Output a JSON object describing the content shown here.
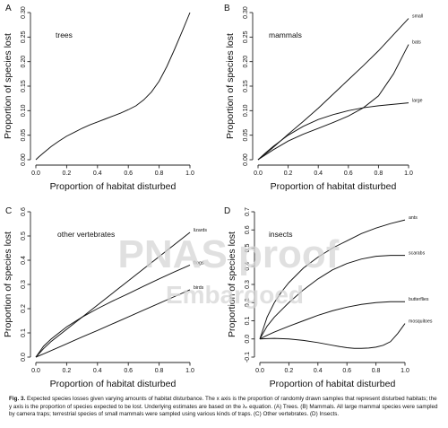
{
  "figure": {
    "watermark": {
      "line1": "PNAS proof",
      "line2": "Embargoed"
    },
    "caption": {
      "label": "Fig. 3.",
      "text": "Expected species losses given varying amounts of habitat disturbance. The x axis is the proportion of randomly drawn samples that represent disturbed habitats; the y axis is the proportion of species expected to be lost. Underlying estimates are based on the λₙ equation. (A) Trees. (B) Mammals. All large mammal species were sampled by camera traps; terrestrial species of small mammals were sampled using various kinds of traps. (C) Other vertebrates. (D) Insects."
    }
  },
  "chart_data": [
    {
      "type": "line",
      "panel": "A",
      "title": "trees",
      "xlabel": "Proportion of habitat disturbed",
      "ylabel": "Proportion of species lost",
      "xlim": [
        0,
        1
      ],
      "ylim": [
        0,
        0.3
      ],
      "xticks": [
        "0.0",
        "0.2",
        "0.4",
        "0.6",
        "0.8",
        "1.0"
      ],
      "yticks": [
        "0.00",
        "0.05",
        "0.10",
        "0.15",
        "0.20",
        "0.25",
        "0.30"
      ],
      "grid": false,
      "series": [
        {
          "name": "",
          "x": [
            0,
            0.02,
            0.05,
            0.1,
            0.15,
            0.2,
            0.25,
            0.3,
            0.35,
            0.4,
            0.45,
            0.5,
            0.55,
            0.6,
            0.65,
            0.7,
            0.75,
            0.8,
            0.85,
            0.9,
            0.95,
            1.0
          ],
          "y": [
            0,
            0.006,
            0.014,
            0.027,
            0.038,
            0.048,
            0.056,
            0.064,
            0.071,
            0.077,
            0.083,
            0.089,
            0.095,
            0.102,
            0.11,
            0.122,
            0.138,
            0.16,
            0.19,
            0.225,
            0.262,
            0.3
          ]
        }
      ]
    },
    {
      "type": "line",
      "panel": "B",
      "title": "mammals",
      "xlabel": "Proportion of habitat disturbed",
      "ylabel": "Proportion of species lost",
      "xlim": [
        0,
        1
      ],
      "ylim": [
        0,
        0.3
      ],
      "xticks": [
        "0.0",
        "0.2",
        "0.4",
        "0.6",
        "0.8",
        "1.0"
      ],
      "yticks": [
        "0.00",
        "0.05",
        "0.10",
        "0.15",
        "0.20",
        "0.25",
        "0.30"
      ],
      "grid": false,
      "series": [
        {
          "name": "small",
          "x": [
            0,
            0.05,
            0.1,
            0.2,
            0.3,
            0.4,
            0.5,
            0.6,
            0.7,
            0.8,
            0.9,
            1.0
          ],
          "y": [
            0,
            0.012,
            0.025,
            0.052,
            0.078,
            0.105,
            0.134,
            0.163,
            0.192,
            0.222,
            0.255,
            0.288
          ]
        },
        {
          "name": "bats",
          "x": [
            0,
            0.05,
            0.1,
            0.2,
            0.3,
            0.4,
            0.5,
            0.6,
            0.7,
            0.8,
            0.9,
            1.0
          ],
          "y": [
            0,
            0.01,
            0.02,
            0.038,
            0.052,
            0.064,
            0.076,
            0.089,
            0.106,
            0.13,
            0.175,
            0.235
          ]
        },
        {
          "name": "large",
          "x": [
            0,
            0.05,
            0.1,
            0.2,
            0.3,
            0.4,
            0.5,
            0.6,
            0.7,
            0.8,
            0.9,
            1.0
          ],
          "y": [
            0,
            0.014,
            0.027,
            0.05,
            0.068,
            0.082,
            0.092,
            0.1,
            0.106,
            0.11,
            0.113,
            0.116
          ]
        }
      ]
    },
    {
      "type": "line",
      "panel": "C",
      "title": "other vertebrates",
      "xlabel": "Proportion of habitat disturbed",
      "ylabel": "Proportion of species lost",
      "xlim": [
        0,
        1
      ],
      "ylim": [
        0,
        0.6
      ],
      "xticks": [
        "0.0",
        "0.2",
        "0.4",
        "0.6",
        "0.8",
        "1.0"
      ],
      "yticks": [
        "0.0",
        "0.1",
        "0.2",
        "0.3",
        "0.4",
        "0.5",
        "0.6"
      ],
      "grid": false,
      "series": [
        {
          "name": "lizards",
          "x": [
            0,
            0.05,
            0.1,
            0.2,
            0.3,
            0.4,
            0.5,
            0.6,
            0.7,
            0.8,
            0.9,
            1.0
          ],
          "y": [
            0,
            0.035,
            0.065,
            0.115,
            0.165,
            0.215,
            0.265,
            0.315,
            0.365,
            0.415,
            0.465,
            0.515
          ]
        },
        {
          "name": "frogs",
          "x": [
            0,
            0.05,
            0.1,
            0.2,
            0.3,
            0.4,
            0.5,
            0.6,
            0.7,
            0.8,
            0.9,
            1.0
          ],
          "y": [
            0,
            0.045,
            0.075,
            0.125,
            0.165,
            0.2,
            0.232,
            0.262,
            0.293,
            0.323,
            0.352,
            0.38
          ]
        },
        {
          "name": "birds",
          "x": [
            0,
            0.05,
            0.1,
            0.2,
            0.3,
            0.4,
            0.5,
            0.6,
            0.7,
            0.8,
            0.9,
            1.0
          ],
          "y": [
            0,
            0.013,
            0.027,
            0.055,
            0.083,
            0.11,
            0.138,
            0.166,
            0.194,
            0.222,
            0.25,
            0.278
          ]
        }
      ]
    },
    {
      "type": "line",
      "panel": "D",
      "title": "insects",
      "xlabel": "Proportion of habitat disturbed",
      "ylabel": "Proportion of species lost",
      "xlim": [
        0,
        1
      ],
      "ylim": [
        -0.1,
        0.7
      ],
      "xticks": [
        "0.0",
        "0.2",
        "0.4",
        "0.6",
        "0.8",
        "1.0"
      ],
      "yticks": [
        "-0.1",
        "0.0",
        "0.1",
        "0.2",
        "0.3",
        "0.4",
        "0.5",
        "0.6",
        "0.7"
      ],
      "grid": false,
      "series": [
        {
          "name": "ants",
          "x": [
            0,
            0.05,
            0.1,
            0.15,
            0.2,
            0.3,
            0.4,
            0.5,
            0.6,
            0.7,
            0.8,
            0.9,
            1.0
          ],
          "y": [
            0,
            0.12,
            0.2,
            0.26,
            0.31,
            0.39,
            0.45,
            0.5,
            0.54,
            0.58,
            0.61,
            0.635,
            0.655
          ]
        },
        {
          "name": "scarabs",
          "x": [
            0,
            0.05,
            0.1,
            0.15,
            0.2,
            0.3,
            0.4,
            0.5,
            0.6,
            0.7,
            0.8,
            0.9,
            1.0
          ],
          "y": [
            0,
            0.07,
            0.12,
            0.16,
            0.2,
            0.27,
            0.33,
            0.38,
            0.415,
            0.44,
            0.455,
            0.46,
            0.46
          ]
        },
        {
          "name": "butterflies",
          "x": [
            0,
            0.05,
            0.1,
            0.2,
            0.3,
            0.4,
            0.5,
            0.6,
            0.7,
            0.8,
            0.9,
            1.0
          ],
          "y": [
            0,
            0.02,
            0.038,
            0.07,
            0.1,
            0.13,
            0.155,
            0.175,
            0.19,
            0.2,
            0.205,
            0.205
          ]
        },
        {
          "name": "mosquitoes",
          "x": [
            0,
            0.05,
            0.1,
            0.2,
            0.3,
            0.4,
            0.5,
            0.55,
            0.6,
            0.65,
            0.7,
            0.75,
            0.8,
            0.85,
            0.9,
            0.95,
            1.0
          ],
          "y": [
            0,
            0.002,
            0.003,
            0.0,
            -0.008,
            -0.02,
            -0.035,
            -0.042,
            -0.048,
            -0.052,
            -0.052,
            -0.05,
            -0.045,
            -0.035,
            -0.015,
            0.03,
            0.085
          ]
        }
      ]
    }
  ]
}
